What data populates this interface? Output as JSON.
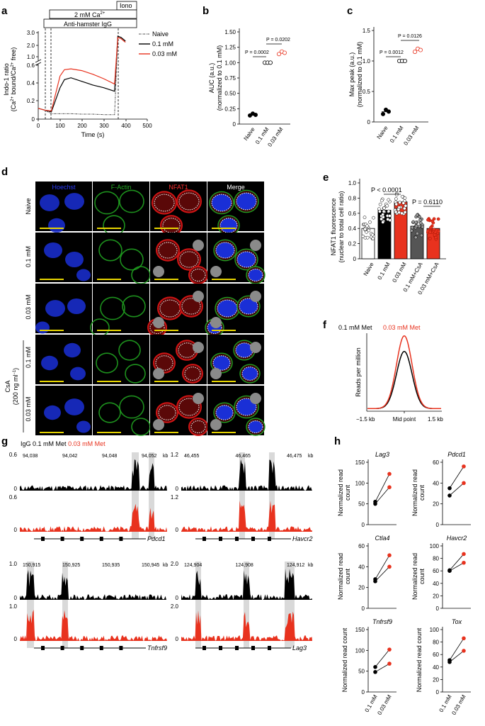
{
  "panels": {
    "a": "a",
    "b": "b",
    "c": "c",
    "d": "d",
    "e": "e",
    "f": "f",
    "g": "g",
    "h": "h"
  },
  "colors": {
    "black": "#000000",
    "red": "#e8321e",
    "naive_gray": "#555555",
    "hoechst": "#1a2fd6",
    "factin": "#20a020",
    "nfat": "#d01515",
    "cell_gray": "#8a8a8a",
    "scalebar": "#e6d400",
    "highlight": "#d9d9d9"
  },
  "panel_a": {
    "stim_iono": "Iono",
    "stim_ca": "2 mM Ca",
    "stim_ca_sup": "2+",
    "stim_igg": "Anti-hamster IgG",
    "ylabel_1": "Indo-1 ratio",
    "ylabel_2a": "(Ca",
    "ylabel_2b": "2+",
    "ylabel_2c": " bound/Ca",
    "ylabel_2d": "2+",
    "ylabel_2e": " free)",
    "xlabel": "Time (s)",
    "y_upper_ticks": [
      "3.0",
      "2.0",
      "1.0"
    ],
    "y_lower_ticks": [
      "0.6",
      "0.4",
      "0.2",
      "0"
    ],
    "x_ticks": [
      "0",
      "100",
      "200",
      "300",
      "400",
      "500"
    ],
    "legend": [
      "Naive",
      "0.1 mM",
      "0.03 mM"
    ]
  },
  "panel_b": {
    "ylabel_1": "AUC (a.u.)",
    "ylabel_2": "(normalized to 0.1 mM)",
    "y_ticks": [
      "1.50",
      "1.25",
      "1.00",
      "0.75",
      "0.50",
      "0.25",
      "0"
    ],
    "categories": [
      "Naive",
      "0.1 mM",
      "0.03 mM"
    ],
    "p1": "P = 0.0002",
    "p2": "P = 0.0202"
  },
  "panel_c": {
    "ylabel_1": "Max peak (a.u.)",
    "ylabel_2": "(normalized to 0.1 mM)",
    "y_ticks": [
      "1.5",
      "1.0",
      "0.5",
      "0"
    ],
    "categories": [
      "Naive",
      "0.1 mM",
      "0.03 mM"
    ],
    "p1": "P = 0.0012",
    "p2": "P = 0.0126"
  },
  "panel_d": {
    "columns": [
      "Hoechst",
      "F-Actin",
      "NFAT1",
      "Merge"
    ],
    "rows": [
      "Naive",
      "0.1 mM",
      "0.03 mM",
      "0.1 mM",
      "0.03 mM"
    ],
    "csa_1": "CsA",
    "csa_2": "(200 ng ml",
    "csa_sup": "−1",
    "csa_3": ")"
  },
  "panel_e": {
    "ylabel_1": "NFAT1 fluorescence",
    "ylabel_2": "(nuclear to total cell ratio)",
    "y_ticks": [
      "1.0",
      "0.8",
      "0.6",
      "0.4",
      "0.2",
      "0"
    ],
    "categories": [
      "Naive",
      "0.1 mM",
      "0.03 mM",
      "0.1 mM+CsA",
      "0.03 mM+CsA"
    ],
    "p1": "P < 0.0001",
    "p2": "P = 0.6110"
  },
  "panel_f": {
    "legend_black": "0.1 mM Met",
    "legend_red": "0.03 mM Met",
    "ylabel": "Reads per million",
    "x_ticks": [
      "−1.5 kb",
      "Mid point",
      "1.5 kb"
    ]
  },
  "panel_g": {
    "legend_igg": "IgG",
    "legend_black": "0.1 mM Met",
    "legend_red": "0.03 mM Met",
    "tracks": [
      {
        "ymax": "0.6",
        "ymax2": "0.6",
        "ymin": "0",
        "coords": [
          "94,038",
          "94,042",
          "94,048",
          "94,052"
        ],
        "unit": "kb",
        "gene": "Pdcd1"
      },
      {
        "ymax": "1.2",
        "ymax2": "1.2",
        "ymin": "0",
        "coords": [
          "46,455",
          "46,465",
          "46,475"
        ],
        "unit": "kb",
        "gene": "Havcr2"
      },
      {
        "ymax": "1.0",
        "ymax2": "1.0",
        "ymin": "0",
        "coords": [
          "150,915",
          "150,925",
          "150,935",
          "150,945"
        ],
        "unit": "kb",
        "gene": "Tnfrsf9"
      },
      {
        "ymax": "2.0",
        "ymax2": "2.0",
        "ymin": "0",
        "coords": [
          "124,904",
          "124,908",
          "124,912"
        ],
        "unit": "kb",
        "gene": "Lag3"
      }
    ]
  },
  "panel_h": {
    "ylabel_1": "Normalized read",
    "ylabel_2": "count",
    "ylabel_one": "Normalized read count",
    "x_categories": [
      "0.1 mM",
      "0.03 mM"
    ],
    "genes": [
      {
        "name": "Lag3",
        "ticks": [
          "0",
          "50",
          "100",
          "150"
        ],
        "black": [
          50,
          55
        ],
        "red": [
          90,
          122
        ],
        "ymax": 150
      },
      {
        "name": "Pdcd1",
        "ticks": [
          "0",
          "20",
          "40",
          "60"
        ],
        "black": [
          28,
          35
        ],
        "red": [
          40,
          56
        ],
        "ymax": 60
      },
      {
        "name": "Ctla4",
        "ticks": [
          "0",
          "20",
          "40",
          "60"
        ],
        "black": [
          26,
          28
        ],
        "red": [
          40,
          51
        ],
        "ymax": 60
      },
      {
        "name": "Havcr2",
        "ticks": [
          "0",
          "20",
          "40",
          "60",
          "80",
          "100"
        ],
        "black": [
          60,
          61
        ],
        "red": [
          73,
          87
        ],
        "ymax": 100
      },
      {
        "name": "Tnfrsf9",
        "ticks": [
          "0",
          "50",
          "100",
          "150"
        ],
        "black": [
          48,
          60
        ],
        "red": [
          68,
          102
        ],
        "ymax": 150
      },
      {
        "name": "Tox",
        "ticks": [
          "0",
          "20",
          "40",
          "60",
          "80",
          "100"
        ],
        "black": [
          48,
          51
        ],
        "red": [
          66,
          86
        ],
        "ymax": 100
      }
    ]
  },
  "chart_data": [
    {
      "type": "line",
      "panel": "a",
      "xlabel": "Time (s)",
      "xlim": [
        0,
        500
      ],
      "series": [
        {
          "name": "Naive",
          "x": [
            0,
            30,
            60,
            100,
            150,
            200,
            250,
            300,
            350,
            365,
            380,
            400
          ],
          "y": [
            0.12,
            0.1,
            0.06,
            0.06,
            0.06,
            0.055,
            0.055,
            0.05,
            0.05,
            2.6,
            2.5,
            2.2
          ]
        },
        {
          "name": "0.1 mM",
          "x": [
            0,
            30,
            60,
            100,
            120,
            150,
            200,
            250,
            300,
            350,
            365,
            380,
            400
          ],
          "y": [
            0.12,
            0.1,
            0.08,
            0.35,
            0.44,
            0.46,
            0.42,
            0.38,
            0.35,
            0.31,
            2.7,
            2.6,
            2.3
          ]
        },
        {
          "name": "0.03 mM",
          "x": [
            0,
            30,
            60,
            100,
            120,
            150,
            200,
            250,
            300,
            350,
            365,
            380,
            400
          ],
          "y": [
            0.12,
            0.1,
            0.09,
            0.48,
            0.55,
            0.56,
            0.54,
            0.5,
            0.45,
            0.39,
            2.6,
            2.5,
            2.2
          ]
        }
      ]
    },
    {
      "type": "scatter",
      "panel": "b",
      "categories": [
        "Naive",
        "0.1 mM",
        "0.03 mM"
      ],
      "series": [
        {
          "name": "Naive",
          "values": [
            0.14,
            0.17,
            0.15
          ]
        },
        {
          "name": "0.1 mM",
          "values": [
            1.0,
            1.0,
            1.0
          ]
        },
        {
          "name": "0.03 mM",
          "values": [
            1.14,
            1.18,
            1.16
          ]
        }
      ],
      "ylim": [
        0,
        1.5
      ]
    },
    {
      "type": "scatter",
      "panel": "c",
      "categories": [
        "Naive",
        "0.1 mM",
        "0.03 mM"
      ],
      "series": [
        {
          "name": "Naive",
          "values": [
            0.13,
            0.2,
            0.17
          ]
        },
        {
          "name": "0.1 mM",
          "values": [
            1.0,
            1.0,
            1.0
          ]
        },
        {
          "name": "0.03 mM",
          "values": [
            1.15,
            1.2,
            1.18
          ]
        }
      ],
      "ylim": [
        0,
        1.5
      ]
    },
    {
      "type": "bar",
      "panel": "e",
      "categories": [
        "Naive",
        "0.1 mM",
        "0.03 mM",
        "0.1 mM+CsA",
        "0.03 mM+CsA"
      ],
      "values": [
        0.4,
        0.64,
        0.75,
        0.43,
        0.4
      ],
      "ylim": [
        0,
        1.0
      ]
    },
    {
      "type": "line",
      "panel": "f",
      "ylabel": "Reads per million",
      "series": [
        {
          "name": "0.1 mM Met",
          "peak": 0.44
        },
        {
          "name": "0.03 mM Met",
          "peak": 0.56
        }
      ],
      "ylim": [
        0,
        0.6
      ]
    }
  ]
}
